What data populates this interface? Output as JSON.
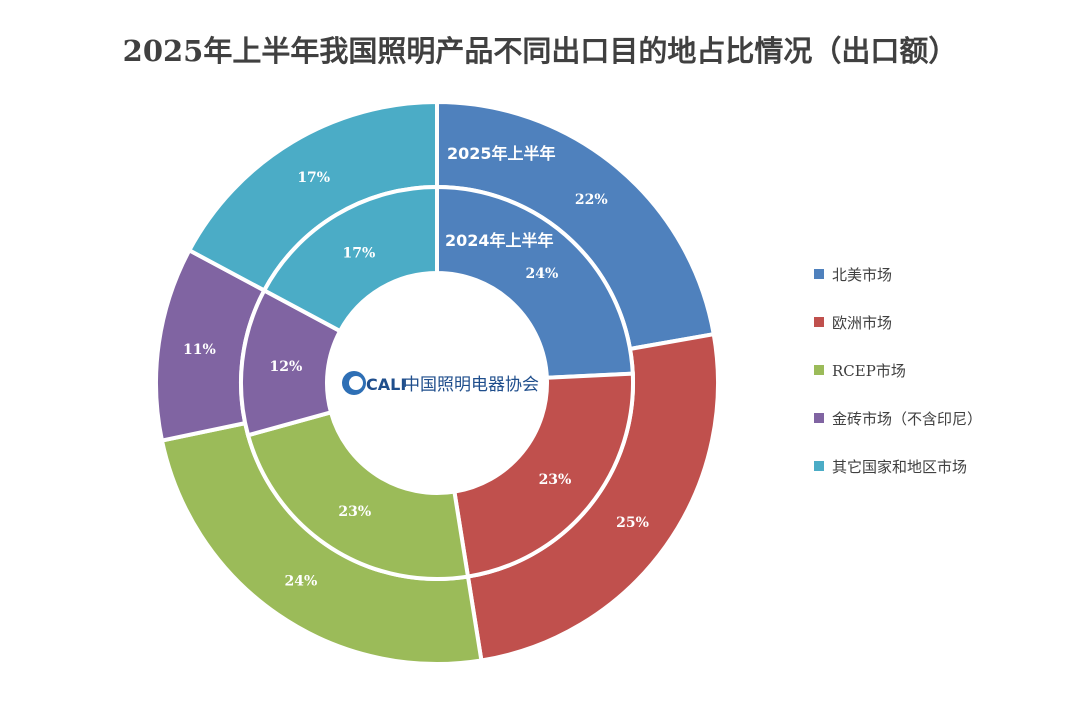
{
  "chart_data": {
    "type": "donut",
    "title": "2025年上半年我国照明产品不同出口目的地占比情况（出口额）",
    "categories": [
      "北美市场",
      "欧洲市场",
      "RCEP市场",
      "金砖市场（不含印尼）",
      "其它国家和地区市场"
    ],
    "colors": [
      "#4f81bd",
      "#c0504d",
      "#9bbb59",
      "#8064a2",
      "#4bacc6"
    ],
    "series": [
      {
        "name": "2025年上半年",
        "values": [
          22,
          25,
          24,
          11,
          17
        ],
        "labels": [
          "22%",
          "25%",
          "24%",
          "11%",
          "17%"
        ]
      },
      {
        "name": "2024年上半年",
        "values": [
          24,
          23,
          23,
          12,
          17
        ],
        "labels": [
          "24%",
          "23%",
          "23%",
          "12%",
          "17%"
        ]
      }
    ],
    "legend_position": "right"
  },
  "logo": {
    "mark": "CALI",
    "text": "中国照明电器协会"
  }
}
